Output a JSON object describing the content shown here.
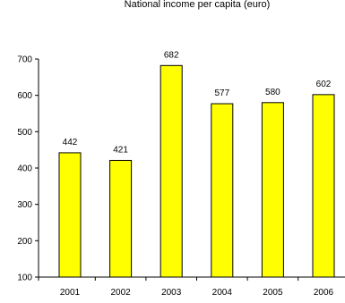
{
  "chart_data": {
    "type": "bar",
    "title": "National income per capita (euro)",
    "categories": [
      "2001",
      "2002",
      "2003",
      "2004",
      "2005",
      "2006"
    ],
    "values": [
      442,
      421,
      682,
      577,
      580,
      602
    ],
    "data_labels": [
      "442",
      "421",
      "682",
      "577",
      "580",
      "602"
    ],
    "ylim": [
      100,
      700
    ],
    "yticks": [
      100,
      200,
      300,
      400,
      500,
      600,
      700
    ],
    "ytick_labels": [
      "100",
      "200",
      "300",
      "400",
      "500",
      "600",
      "700"
    ],
    "xlabel": "",
    "ylabel": "",
    "grid": false,
    "legend": "none",
    "bar_color": "#ffff00",
    "bar_edge_color": "#000000"
  }
}
